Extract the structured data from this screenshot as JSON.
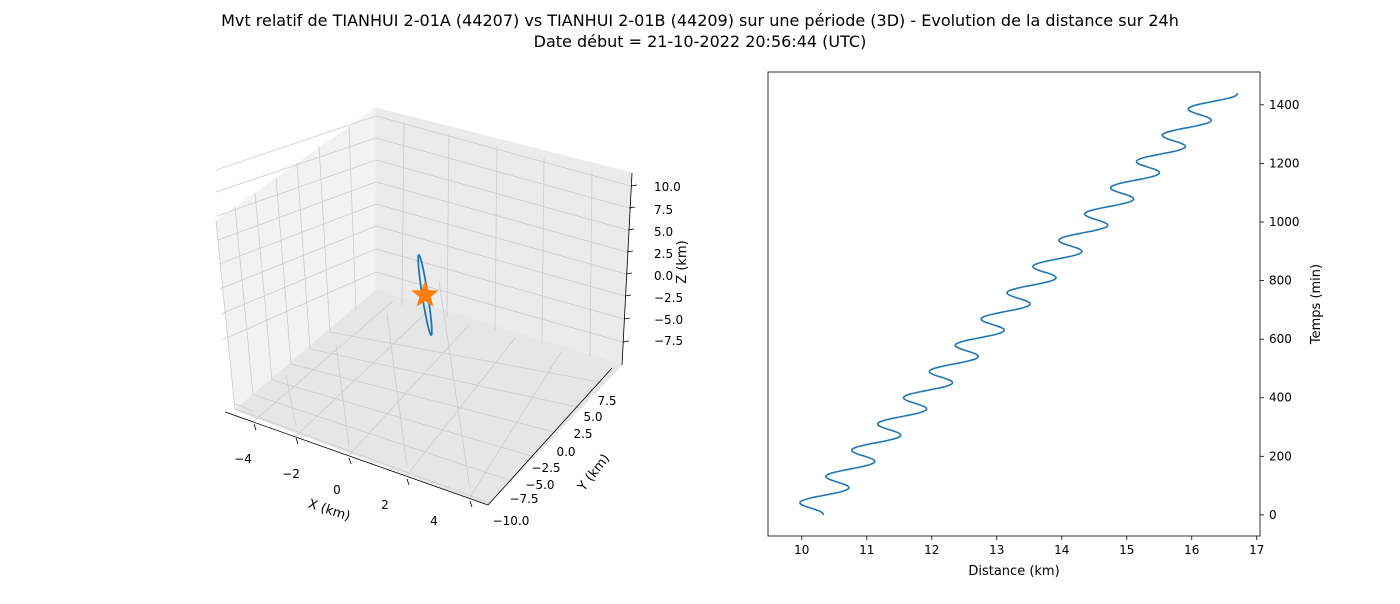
{
  "figure": {
    "title_line1": "Mvt relatif de TIANHUI 2-01A (44207) vs TIANHUI 2-01B (44209) sur une période (3D) - Evolution de la distance sur 24h",
    "title_line2": "Date début = 21-10-2022 20:56:44 (UTC)"
  },
  "colors": {
    "series": "#1f77b4",
    "marker": "#ff7f0e",
    "pane": "#f2f2f2",
    "grid": "#cccccc"
  },
  "chart_data": [
    {
      "type": "line",
      "projection": "3d",
      "xlabel": "X (km)",
      "ylabel": "Y (km)",
      "zlabel": "Z (km)",
      "x_ticks": [
        "−4",
        "−2",
        "0",
        "2",
        "4"
      ],
      "y_ticks": [
        "−10.0",
        "−7.5",
        "−5.0",
        "−2.5",
        "0.0",
        "2.5",
        "5.0",
        "7.5"
      ],
      "z_ticks": [
        "−7.5",
        "−5.0",
        "−2.5",
        "0.0",
        "2.5",
        "5.0",
        "7.5",
        "10.0"
      ],
      "grid": true,
      "series": [
        {
          "trajectory_endpoints": [
            {
              "x": -3.6,
              "y": 9.2,
              "z": 9.5
            },
            {
              "x": 3.6,
              "y": -9.2,
              "z": -9.5
            }
          ],
          "orbit_width_fraction": 0.035
        }
      ],
      "marker": {
        "symbol": "star",
        "x": 0,
        "y": 0,
        "z": 0
      }
    },
    {
      "type": "line",
      "xlabel": "Distance (km)",
      "ylabel": "Temps (min)",
      "x_ticks": [
        10,
        11,
        12,
        13,
        14,
        15,
        16,
        17
      ],
      "y_ticks": [
        0,
        200,
        400,
        600,
        800,
        1000,
        1200,
        1400
      ],
      "xlim": [
        9.48,
        17.05
      ],
      "ylim": [
        -72,
        1512
      ],
      "y_axis_side": "right",
      "grid": false,
      "series": [
        {
          "t_range": [
            0,
            1440
          ],
          "distance_start": 10.05,
          "distance_end": 16.45,
          "oscillation_amplitude": 0.27,
          "oscillation_period_min": 89.6,
          "oscillation_phase_deg": 90
        }
      ]
    }
  ]
}
